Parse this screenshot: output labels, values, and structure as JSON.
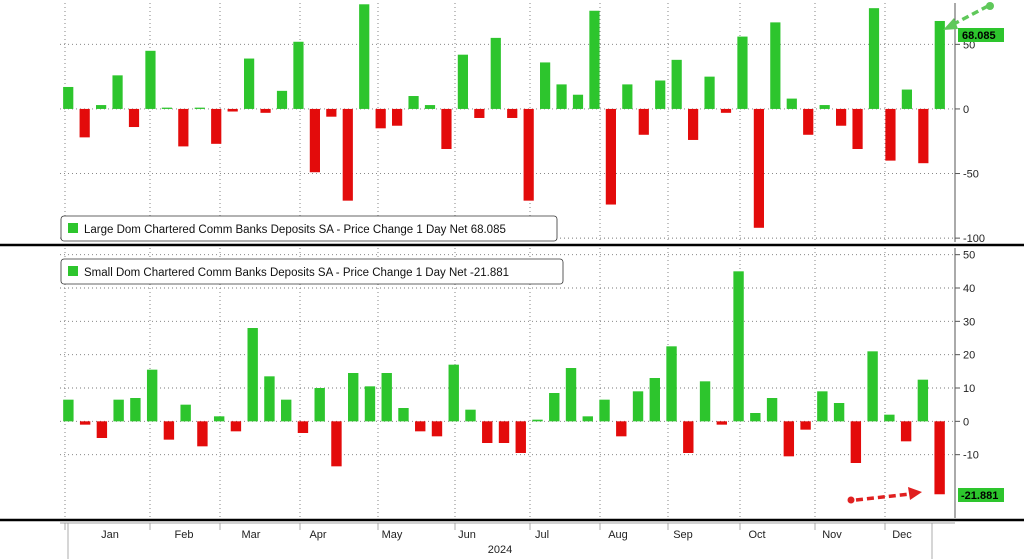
{
  "colors": {
    "positive": "#2dc52d",
    "negative": "#e30b0b",
    "arrow_positive": "#5fc85a",
    "arrow_negative": "#e02020"
  },
  "x_axis": {
    "months": [
      "Jan",
      "Feb",
      "Mar",
      "Apr",
      "May",
      "Jun",
      "Jul",
      "Aug",
      "Sep",
      "Oct",
      "Nov",
      "Dec"
    ],
    "year": "2024"
  },
  "chart_data": [
    {
      "type": "bar",
      "legend": "Large Dom Chartered Comm Banks Deposits SA - Price Change 1 Day Net 68.085",
      "last_value_label": "68.085",
      "ylim": [
        -103,
        82
      ],
      "yticks": [
        50,
        0,
        -50,
        -100
      ],
      "ytick_labels": [
        "50",
        "0",
        "-50",
        "-100"
      ],
      "grid": true,
      "legend_position": "bottom-left",
      "values": [
        17,
        -22,
        3,
        26,
        -14,
        45,
        1,
        -29,
        1,
        -27,
        -2,
        39,
        -3,
        14,
        52,
        -49,
        -6,
        -71,
        81,
        -15,
        -13,
        10,
        3,
        -31,
        42,
        -7,
        55,
        -7,
        -71,
        36,
        19,
        11,
        76,
        -74,
        19,
        -20,
        22,
        38,
        -24,
        25,
        -3,
        56,
        -92,
        67,
        8,
        -20,
        3,
        -13,
        -31,
        78,
        -40,
        15,
        -42,
        68.085
      ]
    },
    {
      "type": "bar",
      "legend": "Small Dom Chartered Comm Banks Deposits SA - Price Change 1 Day Net -21.881",
      "last_value_label": "-21.881",
      "ylim": [
        -29,
        52
      ],
      "yticks": [
        50,
        40,
        30,
        20,
        10,
        0,
        -10
      ],
      "ytick_labels": [
        "50",
        "40",
        "30",
        "20",
        "10",
        "0",
        "-10"
      ],
      "grid": true,
      "legend_position": "top-left",
      "values": [
        6.5,
        -1,
        -5,
        6.5,
        7,
        15.5,
        -5.5,
        5,
        -7.5,
        1.5,
        -3,
        28,
        13.5,
        6.5,
        -3.5,
        10,
        -13.5,
        14.5,
        10.5,
        14.5,
        4,
        -3,
        -4.5,
        17,
        3.5,
        -6.5,
        -6.5,
        -9.5,
        0.5,
        8.5,
        16,
        1.5,
        6.5,
        -4.5,
        9,
        13,
        22.5,
        -9.5,
        12,
        -1,
        45,
        2.5,
        7,
        -10.5,
        -2.5,
        9,
        5.5,
        -12.5,
        21,
        2,
        -6,
        12.5,
        -21.881
      ]
    }
  ]
}
